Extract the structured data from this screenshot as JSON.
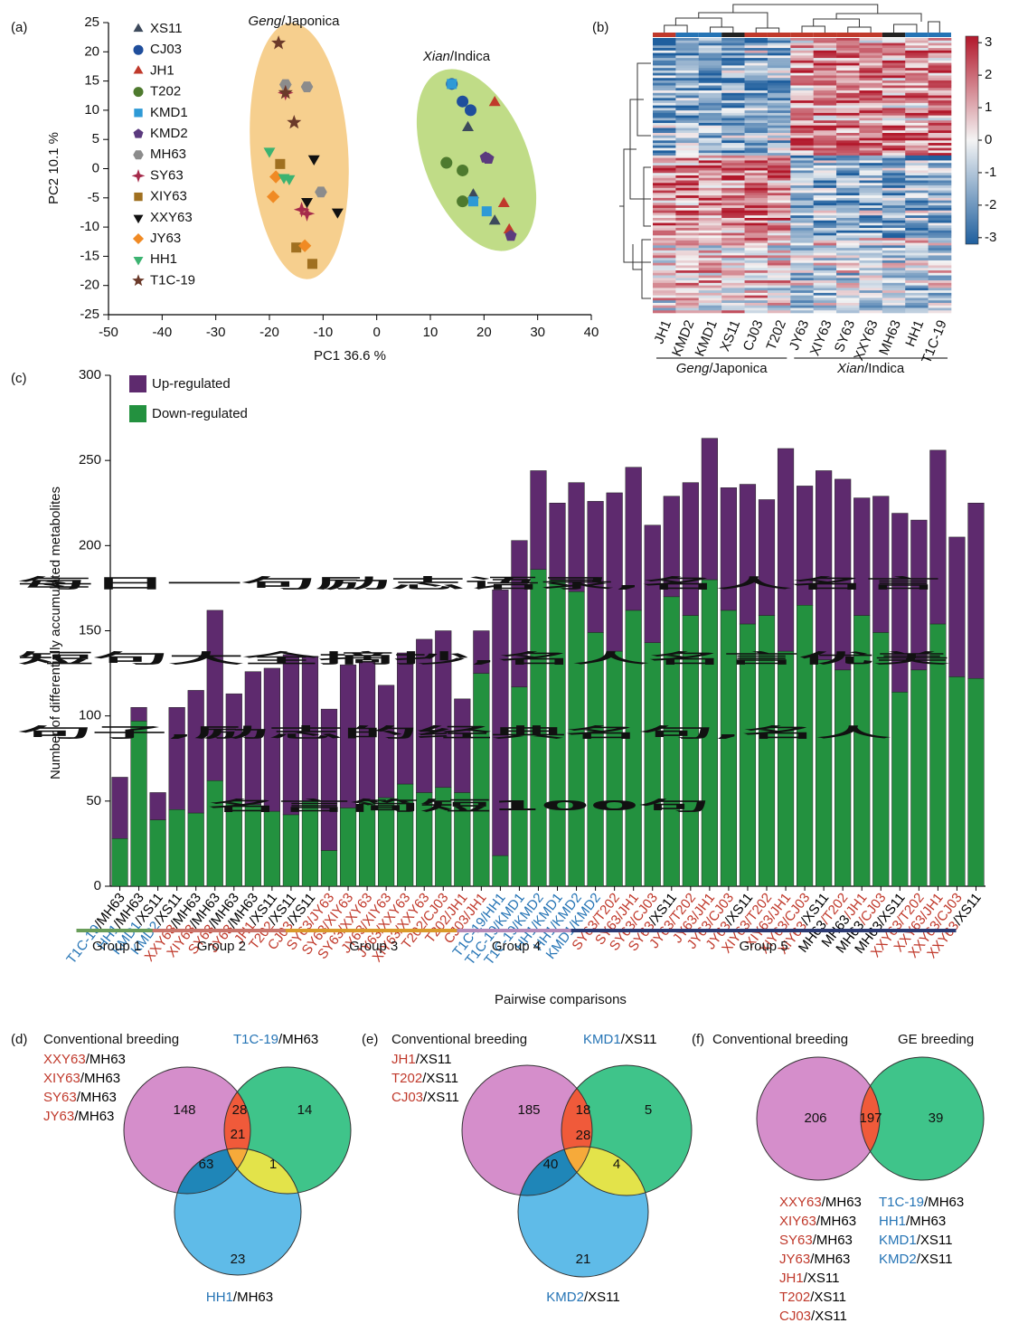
{
  "chart_data": [
    {
      "type": "scatter",
      "panel": "(a)",
      "xlabel": "PC1 36.6 %",
      "ylabel": "PC2 10.1 %",
      "xlim": [
        -50,
        40
      ],
      "ylim": [
        -25,
        25
      ],
      "xticks": [
        -50,
        -40,
        -30,
        -20,
        -10,
        0,
        10,
        20,
        30,
        40
      ],
      "yticks": [
        -25,
        -20,
        -15,
        -10,
        -5,
        0,
        5,
        10,
        15,
        20,
        25
      ],
      "annotations": [
        "Geng/Japonica",
        "Xian/Indica"
      ],
      "series": [
        {
          "name": "XS11",
          "color": "#3d4a5c",
          "label_color": "#000000",
          "marker": "triangle",
          "x": [
            17,
            18,
            22
          ],
          "y": [
            7,
            -4.5,
            -9
          ]
        },
        {
          "name": "CJ03",
          "color": "#1f4e9c",
          "label_color": "#c0392b",
          "marker": "circle",
          "x": [
            14,
            16,
            17.5
          ],
          "y": [
            14.5,
            11.5,
            10
          ]
        },
        {
          "name": "JH1",
          "color": "#c0392b",
          "label_color": "#c0392b",
          "marker": "triangle",
          "x": [
            22,
            23.7,
            24.7
          ],
          "y": [
            11.3,
            -6,
            -10.5
          ]
        },
        {
          "name": "T202",
          "color": "#4e7a2e",
          "label_color": "#c0392b",
          "marker": "circle",
          "x": [
            13,
            16,
            16
          ],
          "y": [
            1,
            -0.3,
            -5.6
          ]
        },
        {
          "name": "KMD1",
          "color": "#2e9ad6",
          "label_color": "#2574b5",
          "marker": "square",
          "x": [
            14,
            18,
            20.5
          ],
          "y": [
            14.5,
            -5.6,
            -7.3
          ]
        },
        {
          "name": "KMD2",
          "color": "#5b3a7e",
          "label_color": "#2574b5",
          "marker": "pentagon",
          "x": [
            20.3,
            20.8,
            25
          ],
          "y": [
            1.9,
            1.7,
            -11.5
          ]
        },
        {
          "name": "MH63",
          "color": "#8c8c8c",
          "label_color": "#000000",
          "marker": "hexagon",
          "x": [
            -17,
            -13,
            -10.4
          ],
          "y": [
            14.4,
            14,
            -4
          ]
        },
        {
          "name": "SY63",
          "color": "#a52a4a",
          "label_color": "#c0392b",
          "marker": "star4",
          "x": [
            -14,
            -13,
            -17
          ],
          "y": [
            -7,
            -7.7,
            13
          ]
        },
        {
          "name": "XIY63",
          "color": "#a07020",
          "label_color": "#c0392b",
          "marker": "square",
          "x": [
            -18,
            -15,
            -12
          ],
          "y": [
            0.8,
            -13.5,
            -16.3
          ]
        },
        {
          "name": "XXY63",
          "color": "#111111",
          "label_color": "#c0392b",
          "marker": "downtriangle",
          "x": [
            -11.7,
            -13,
            -7.3
          ],
          "y": [
            1.7,
            -5.6,
            -7.4
          ]
        },
        {
          "name": "JY63",
          "color": "#f08a24",
          "label_color": "#c0392b",
          "marker": "diamond",
          "x": [
            -18.8,
            -19.3,
            -13.4
          ],
          "y": [
            -1.4,
            -4.8,
            -13.2
          ]
        },
        {
          "name": "HH1",
          "color": "#3cb371",
          "label_color": "#2574b5",
          "marker": "downtriangle",
          "x": [
            -20,
            -17.3,
            -16.3
          ],
          "y": [
            3,
            -1.5,
            -1.7
          ]
        },
        {
          "name": "T1C-19",
          "color": "#6b3a2a",
          "label_color": "#2574b5",
          "marker": "star",
          "x": [
            -18.3,
            -15.4,
            -17
          ],
          "y": [
            21.5,
            7.9,
            13
          ]
        }
      ]
    },
    {
      "type": "heatmap",
      "panel": "(b)",
      "columns": [
        "JH1",
        "KMD2",
        "KMD1",
        "XS11",
        "CJ03",
        "T202",
        "JY63",
        "XIY63",
        "SY63",
        "XXY63",
        "MH63",
        "HH1",
        "T1C-19"
      ],
      "groups": [
        {
          "name": "Geng/Japonica",
          "start": 0,
          "end": 5
        },
        {
          "name": "Xian/Indica",
          "start": 6,
          "end": 12
        }
      ],
      "zlim": [
        -3.2,
        3.2
      ],
      "zticks": [
        3,
        2,
        1,
        0,
        -1,
        -2,
        -3
      ],
      "colormap": [
        "#1f5f9e",
        "#f4f4f4",
        "#b2182b"
      ]
    },
    {
      "type": "stacked_bar",
      "panel": "(c)",
      "ylabel": "Number of differentially accumulated metabolites",
      "xlabel": "Pairwise comparisons",
      "ylim": [
        0,
        300
      ],
      "yticks": [
        0,
        50,
        100,
        150,
        200,
        250,
        300
      ],
      "categories": [
        "T1C-19/MH63",
        "HH1/MH63",
        "KMD1/XS11",
        "KMD2/XS11",
        "XXY63/MH63",
        "XIY63/MH63",
        "SY63/MH63",
        "JY63/MH63",
        "JH1/XS11",
        "T202/XS11",
        "CJ03/XS11",
        "SY63/JY63",
        "SY63/XIY63",
        "SY63/XXY63",
        "JY63/XIY63",
        "JY63/XXY63",
        "XIY63/XXY63",
        "T202/CJ03",
        "T202/JH1",
        "CJ03/JH1",
        "T1C-19/HH1",
        "T1C-19/KMD1",
        "T1C-19/KMD2",
        "HH1/KMD1",
        "HH1/KMD2",
        "KMD1/KMD2",
        "SY63/T202",
        "SY63/JH1",
        "SY63/CJ03",
        "SY63/XS11",
        "JY63/T202",
        "JY63/JH1",
        "JY63/CJ03",
        "JY63/XS11",
        "XIY63/T202",
        "XIY63/JH1",
        "XIY63/CJ03",
        "XIY63/XS11",
        "MH63/T202",
        "MH63/JH1",
        "MH63/CJ03",
        "MH63/XS11",
        "XXY63/T202",
        "XXY63/JH1",
        "XXY63/CJ03",
        "XXY63/XS11"
      ],
      "series": [
        {
          "name": "Up-regulated",
          "color": "#5e2a6e",
          "values": [
            36,
            8,
            16,
            60,
            72,
            100,
            63,
            78,
            84,
            94,
            85,
            83,
            84,
            82,
            66,
            77,
            90,
            92,
            55,
            25,
            156,
            86,
            58,
            45,
            64,
            77,
            93,
            84,
            69,
            59,
            78,
            83,
            72,
            82,
            68,
            119,
            70,
            111,
            112,
            69,
            80,
            105,
            88,
            102,
            82,
            103
          ]
        },
        {
          "name": "Down-regulated",
          "color": "#23913f",
          "values": [
            28,
            97,
            39,
            45,
            43,
            62,
            50,
            48,
            44,
            42,
            50,
            21,
            46,
            50,
            52,
            60,
            55,
            58,
            55,
            125,
            18,
            117,
            186,
            180,
            173,
            149,
            138,
            162,
            143,
            170,
            159,
            180,
            162,
            154,
            159,
            138,
            165,
            133,
            127,
            159,
            149,
            114,
            127,
            154,
            123,
            122
          ]
        }
      ],
      "groups": [
        {
          "name": "Group 1",
          "start": 0,
          "end": 3,
          "color": "#6a9e5a"
        },
        {
          "name": "Group 2",
          "start": 4,
          "end": 10,
          "color": "#c9756b"
        },
        {
          "name": "Group 3",
          "start": 11,
          "end": 19,
          "color": "#d99a2b"
        },
        {
          "name": "Group 4",
          "start": 20,
          "end": 25,
          "color": "#b58ab8"
        },
        {
          "name": "Group 5",
          "start": 26,
          "end": 45,
          "color": "#2b3a73"
        }
      ]
    },
    {
      "type": "venn",
      "panel": "(d)",
      "sets": [
        {
          "title": "Conventional breeding",
          "members": [
            "XXY63/MH63",
            "XIY63/MH63",
            "SY63/MH63",
            "JY63/MH63"
          ],
          "color": "#d58ecb"
        },
        {
          "title": "T1C-19/MH63",
          "color": "#3fc48a"
        },
        {
          "title": "HH1/MH63",
          "color": "#5fbbe8"
        }
      ],
      "regions": {
        "A": 148,
        "AB": 28,
        "B": 14,
        "AC": 63,
        "ABC": 21,
        "BC": 1,
        "C": 23
      },
      "region_colors": {
        "AB": "#f05a3a",
        "AC": "#1f86b8",
        "BC": "#e3e34a",
        "ABC": "#f6aa3a"
      }
    },
    {
      "type": "venn",
      "panel": "(e)",
      "sets": [
        {
          "title": "Conventional breeding",
          "members": [
            "JH1/XS11",
            "T202/XS11",
            "CJ03/XS11"
          ],
          "color": "#d58ecb"
        },
        {
          "title": "KMD1/XS11",
          "color": "#3fc48a"
        },
        {
          "title": "KMD2/XS11",
          "color": "#5fbbe8"
        }
      ],
      "regions": {
        "A": 185,
        "AB": 18,
        "B": 5,
        "AC": 40,
        "ABC": 28,
        "BC": 4,
        "C": 21
      },
      "region_colors": {
        "AB": "#f05a3a",
        "AC": "#1f86b8",
        "BC": "#e3e34a",
        "ABC": "#f6aa3a"
      }
    },
    {
      "type": "venn",
      "panel": "(f)",
      "sets": [
        {
          "title": "Conventional breeding",
          "members": [
            "XXY63/MH63",
            "XIY63/MH63",
            "SY63/MH63",
            "JY63/MH63",
            "JH1/XS11",
            "T202/XS11",
            "CJ03/XS11"
          ],
          "color": "#d58ecb"
        },
        {
          "title": "GE breeding",
          "members": [
            "T1C-19/MH63",
            "HH1/MH63",
            "KMD1/XS11",
            "KMD2/XS11"
          ],
          "color": "#3fc48a"
        }
      ],
      "regions": {
        "A": 206,
        "AB": 197,
        "B": 39
      },
      "region_colors": {
        "AB": "#f05a3a"
      }
    }
  ],
  "overlay": {
    "color": "#ff1aff",
    "lines": [
      "每日一句励志语录,名人名言",
      "短句大全摘抄,名人名言优美",
      "句子,励志的经典名句,名人",
      "名言简短100句"
    ]
  }
}
